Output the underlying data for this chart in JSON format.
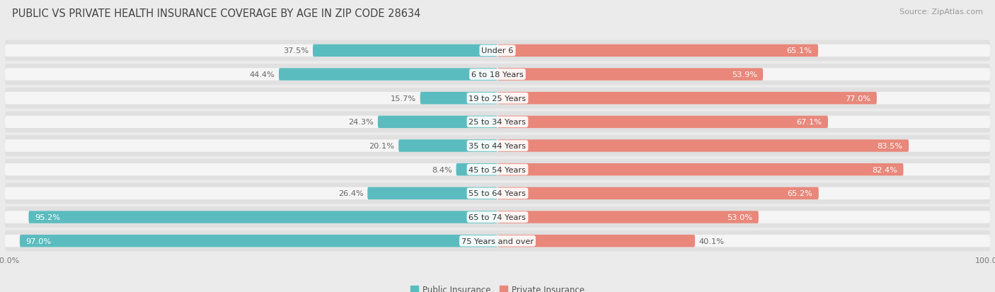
{
  "title": "PUBLIC VS PRIVATE HEALTH INSURANCE COVERAGE BY AGE IN ZIP CODE 28634",
  "source": "Source: ZipAtlas.com",
  "categories": [
    "Under 6",
    "6 to 18 Years",
    "19 to 25 Years",
    "25 to 34 Years",
    "35 to 44 Years",
    "45 to 54 Years",
    "55 to 64 Years",
    "65 to 74 Years",
    "75 Years and over"
  ],
  "public_values": [
    37.5,
    44.4,
    15.7,
    24.3,
    20.1,
    8.4,
    26.4,
    95.2,
    97.0
  ],
  "private_values": [
    65.1,
    53.9,
    77.0,
    67.1,
    83.5,
    82.4,
    65.2,
    53.0,
    40.1
  ],
  "public_color": "#5bbcbf",
  "private_color": "#e8877a",
  "background_color": "#ebebeb",
  "row_bg_color": "#e0e0e0",
  "bar_bg_color": "#f5f5f5",
  "max_value": 100.0,
  "title_fontsize": 10.5,
  "label_fontsize": 8.2,
  "tick_fontsize": 8,
  "legend_fontsize": 8.5,
  "cat_label_fontsize": 8.2
}
